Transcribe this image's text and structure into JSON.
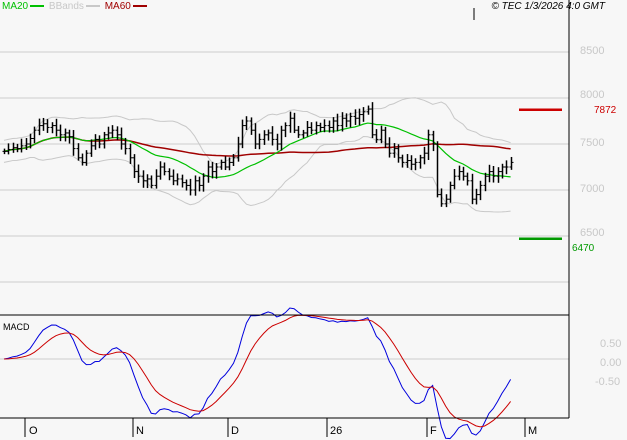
{
  "legend": {
    "ma20": {
      "label": "MA20",
      "color": "#00c000"
    },
    "bbands": {
      "label": "BBands",
      "color": "#c8c8c8"
    },
    "ma60": {
      "label": "MA60",
      "color": "#a00000"
    }
  },
  "copyright": "© TEC 1/3/2026 4:0 GMT",
  "chart_data": [
    {
      "type": "line",
      "title": "",
      "description_series": "daily OHLC bars with MA20, MA60, Bollinger Bands",
      "y_ticks": [
        "8500",
        "8000",
        "7500",
        "7000",
        "6500"
      ],
      "y_tick_values": [
        8500,
        8000,
        7500,
        7000,
        6500
      ],
      "ylim": [
        5800,
        9000
      ],
      "x_ticks": [
        "O",
        "N",
        "D",
        "26",
        "F",
        "M"
      ],
      "grid": true,
      "levels": [
        {
          "value": 7872,
          "label": "7872",
          "color": "#cc0000"
        },
        {
          "value": 6470,
          "label": "6470",
          "color": "#009900"
        }
      ],
      "close": [
        7420,
        7440,
        7460,
        7450,
        7480,
        7500,
        7560,
        7650,
        7700,
        7720,
        7680,
        7700,
        7650,
        7600,
        7620,
        7580,
        7450,
        7350,
        7300,
        7400,
        7480,
        7550,
        7500,
        7600,
        7620,
        7650,
        7600,
        7500,
        7450,
        7350,
        7200,
        7150,
        7100,
        7120,
        7050,
        7150,
        7250,
        7200,
        7150,
        7100,
        7120,
        7080,
        7050,
        7000,
        7100,
        7050,
        7150,
        7250,
        7200,
        7250,
        7300,
        7250,
        7300,
        7350,
        7500,
        7700,
        7750,
        7650,
        7500,
        7550,
        7600,
        7620,
        7550,
        7500,
        7650,
        7700,
        7780,
        7650,
        7600,
        7620,
        7680,
        7650,
        7700,
        7680,
        7700,
        7680,
        7750,
        7700,
        7780,
        7750,
        7800,
        7780,
        7820,
        7850,
        7880,
        7600,
        7550,
        7650,
        7500,
        7400,
        7450,
        7350,
        7300,
        7320,
        7280,
        7300,
        7350,
        7400,
        7600,
        7500,
        6950,
        6850,
        6900,
        7050,
        7150,
        7200,
        7150,
        7100,
        6900,
        6950,
        7050,
        7150,
        7200,
        7150,
        7200,
        7250,
        7250,
        7300
      ]
    },
    {
      "type": "line",
      "title": "MACD",
      "y_ticks": [
        "0.50",
        "0.00",
        "-0.50"
      ],
      "y_tick_values": [
        0.5,
        0,
        -0.5
      ],
      "series_colors": {
        "macd": "#0000dd",
        "signal": "#cc0000"
      }
    }
  ]
}
